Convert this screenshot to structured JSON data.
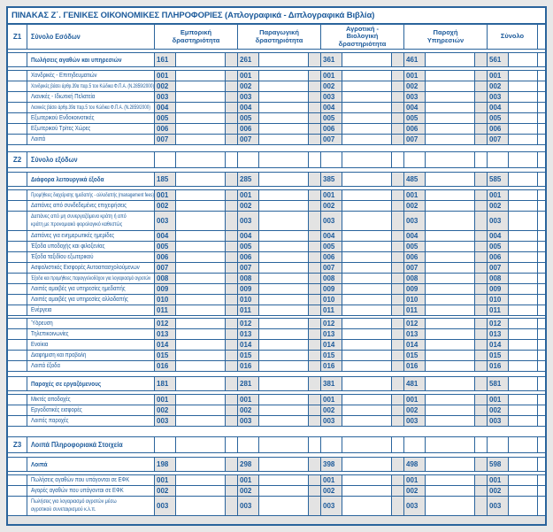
{
  "title": "ΠΙΝΑΚΑΣ Ζ΄. ΓΕΝΙΚΕΣ ΟΙΚΟΝΟΜΙΚΕΣ ΠΛΗΡΟΦΟΡΙΕΣ (Απλογραφικά - Διπλογραφικά Βιβλία)",
  "colors": {
    "border": "#2a649c",
    "text": "#1c5a9a",
    "shade": "#e3e3e3",
    "page_bg": "#e8e8e8"
  },
  "columns": [
    "Εμπορική δραστηριότητα",
    "Παραγωγική δραστηριότητα",
    "Αγροτική - Βιολογική δραστηριότητα",
    "Παροχή Υπηρεσιών",
    "Σύνολο"
  ],
  "sections": [
    {
      "id": "Ζ1",
      "label": "Σύνολο Εσόδων",
      "blocks": [
        {
          "title": "Πωλήσεις αγαθών και υπηρεσιών",
          "codes": [
            "161",
            "261",
            "361",
            "461",
            "561"
          ],
          "rows": [
            {
              "code": "001",
              "label": "Χονδρικές - Επιτηδευματιών"
            },
            {
              "code": "002",
              "label": "Χονδρικές βάσει άρθρ.39α παρ.5 του Κώδικα Φ.Π.Α. (Ν.2859/2000)"
            },
            {
              "code": "003",
              "label": "Λιανικές - Ιδιωτική Πελατεία"
            },
            {
              "code": "004",
              "label": "Λιανικές βάσει άρθρ.39α παρ.5 του Κώδικα Φ.Π.Α. (Ν.2859/2000)"
            },
            {
              "code": "005",
              "label": "Εξωτερικού Ενδοκοινοτικές"
            },
            {
              "code": "006",
              "label": "Εξωτερικού Τρίτες Χώρες"
            },
            {
              "code": "007",
              "label": "Λοιπά"
            }
          ]
        }
      ]
    },
    {
      "id": "Ζ2",
      "label": "Σύνολο εξόδων",
      "blocks": [
        {
          "title": "Διάφορα λειτουργικά έξοδα",
          "codes": [
            "185",
            "285",
            "385",
            "485",
            "585"
          ],
          "rows": [
            {
              "code": "001",
              "label": "Προμήθειες διαχείρισης ημεδαπής - αλλοδαπής (management fees)"
            },
            {
              "code": "002",
              "label": "Δαπάνες από συνδεδεμένες επιχειρήσεις"
            },
            {
              "code": "003",
              "label": "Δαπάνες από μη συνεργαζόμενα κράτη ή από κράτη με προνομιακό φορολογικό καθεστώς"
            },
            {
              "code": "004",
              "label": "Δαπάνες για ενημερωτικές ημερίδες"
            },
            {
              "code": "005",
              "label": "Έξοδα υποδοχής και φιλοξενίας"
            },
            {
              "code": "006",
              "label": "Έξοδα ταξιδίου εξωτερικού"
            },
            {
              "code": "007",
              "label": "Ασφαλιστικές Εισφορές Αυτοαπασχολούμενων"
            },
            {
              "code": "008",
              "label": "Έξοδα και προμήθειες παραγγελιοδόχου για λογαριασμό αγροτών"
            },
            {
              "code": "009",
              "label": "Λοιπές αμοιβές για υπηρεσίες ημεδαπής"
            },
            {
              "code": "010",
              "label": "Λοιπές αμοιβές για υπηρεσίες αλλοδαπής"
            },
            {
              "code": "011",
              "label": "Ενέργεια",
              "gap_after": true
            },
            {
              "code": "012",
              "label": "Ύδρευση"
            },
            {
              "code": "013",
              "label": "Τηλεπικοινωνίες"
            },
            {
              "code": "014",
              "label": "Ενοίκια"
            },
            {
              "code": "015",
              "label": "Διαφήμιση και προβολή"
            },
            {
              "code": "016",
              "label": "Λοιπά έξοδα"
            }
          ]
        },
        {
          "title": "Παροχές σε εργαζόμενους",
          "codes": [
            "181",
            "281",
            "381",
            "481",
            "581"
          ],
          "rows": [
            {
              "code": "001",
              "label": "Μικτές αποδοχές"
            },
            {
              "code": "002",
              "label": "Εργοδοτικές εισφορές"
            },
            {
              "code": "003",
              "label": "Λοιπές παροχές"
            }
          ]
        }
      ]
    },
    {
      "id": "Ζ3",
      "label": "Λοιπά Πληροφοριακά Στοιχεία",
      "blocks": [
        {
          "title": "Λοιπά",
          "codes": [
            "198",
            "298",
            "398",
            "498",
            "598"
          ],
          "rows": [
            {
              "code": "001",
              "label": "Πωλήσεις αγαθών που υπάγονται σε ΕΦΚ"
            },
            {
              "code": "002",
              "label": "Αγορές αγαθών που υπάγονται σε ΕΦΚ"
            },
            {
              "code": "003",
              "label": "Πωλήσεις για λογαριασμό αγροτών μέσω αγροτικού συνεταιρισμού κ.λ.π."
            }
          ]
        }
      ]
    }
  ]
}
